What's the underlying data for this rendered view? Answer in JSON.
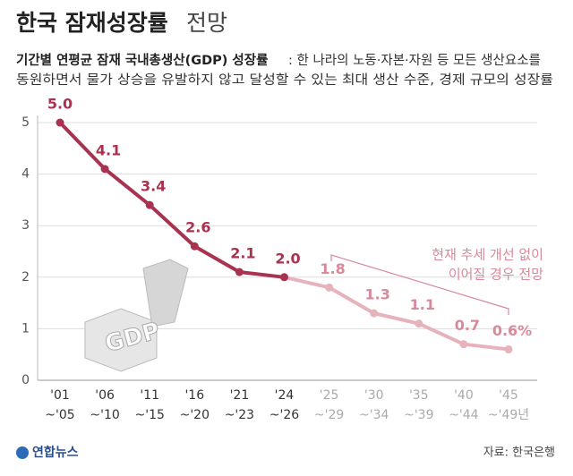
{
  "chart_data": {
    "type": "line",
    "title": "한국 잠재성장률",
    "title_suffix": "전망",
    "subtitle_bold": "기간별 연평균 잠재 국내총생산(GDP) 성장률",
    "subtitle_lines": [
      ": 한 나라의 노동·자본·자원 등 모든 생산요소를",
      "동원하면서 물가 상승을 유발하지 않고 달성할 수 있는 최대 생산 수준, 경제 규모의 성장률"
    ],
    "categories": [
      "'01\n~'05",
      "'06\n~'10",
      "'11\n~'15",
      "'16\n~'20",
      "'21\n~'23",
      "'24\n~'26",
      "'25\n~'29",
      "'30\n~'34",
      "'35\n~'39",
      "'40\n~'44",
      "'45\n~'49년"
    ],
    "values": [
      5.0,
      4.1,
      3.4,
      2.6,
      2.1,
      2.0,
      1.8,
      1.3,
      1.1,
      0.7,
      0.6
    ],
    "value_labels": [
      "5.0",
      "4.1",
      "3.4",
      "2.6",
      "2.1",
      "2.0",
      "1.8",
      "1.3",
      "1.1",
      "0.7",
      "0.6%"
    ],
    "colors": [
      "#a8324f",
      "#a8324f",
      "#a8324f",
      "#a8324f",
      "#a8324f",
      "#a8324f",
      "#e6b3bd",
      "#e6b3bd",
      "#e6b3bd",
      "#e6b3bd",
      "#e6b3bd"
    ],
    "label_colors": [
      "#a8324f",
      "#a8324f",
      "#a8324f",
      "#a8324f",
      "#a8324f",
      "#a8324f",
      "#d9899a",
      "#d9899a",
      "#d9899a",
      "#d9899a",
      "#d9899a"
    ],
    "ylim": [
      0,
      5
    ],
    "yticks": [
      0,
      1,
      2,
      3,
      4,
      5
    ],
    "grid": true,
    "annotation": [
      "현재 추세 개선 없이",
      "이어질 경우 전망"
    ],
    "icon_text": "GDP",
    "logo": "연합뉴스",
    "source": "자료: 한국은행"
  }
}
